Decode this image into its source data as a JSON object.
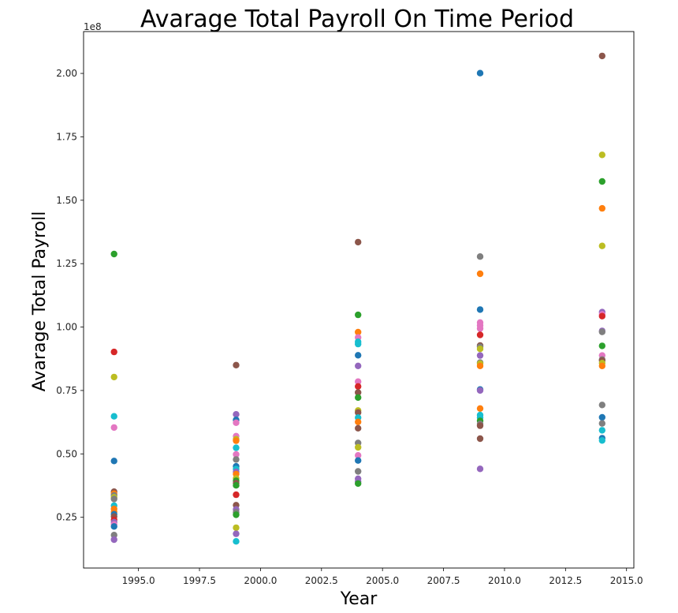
{
  "chart_data": {
    "type": "scatter",
    "title": "Avarage Total Payroll On Time Period",
    "xlabel": "Year",
    "ylabel": "Avarage Total Payroll",
    "y_offset_label": "1e8",
    "xlim": [
      1992.75,
      2015.3
    ],
    "ylim": [
      5000000,
      216500000
    ],
    "x_ticks": [
      1995.0,
      1997.5,
      2000.0,
      2002.5,
      2005.0,
      2007.5,
      2010.0,
      2012.5,
      2015.0
    ],
    "x_tick_labels": [
      "1995.0",
      "1997.5",
      "2000.0",
      "2002.5",
      "2005.0",
      "2007.5",
      "2010.0",
      "2012.5",
      "2015.0"
    ],
    "y_ticks": [
      25000000,
      50000000,
      75000000,
      100000000,
      125000000,
      150000000,
      175000000,
      200000000
    ],
    "y_tick_labels": [
      "0.25",
      "0.50",
      "0.75",
      "1.00",
      "1.25",
      "1.50",
      "1.75",
      "2.00"
    ],
    "grid": false,
    "legend": "none",
    "colors": [
      "#1f77b4",
      "#ff7f0e",
      "#2ca02c",
      "#d62728",
      "#9467bd",
      "#8c564b",
      "#e377c2",
      "#7f7f7f",
      "#bcbd22",
      "#17becf"
    ],
    "points": [
      {
        "x": 1994,
        "y": 128800000,
        "color": "#2ca02c"
      },
      {
        "x": 1994,
        "y": 90200000,
        "color": "#d62728"
      },
      {
        "x": 1994,
        "y": 80300000,
        "color": "#bcbd22"
      },
      {
        "x": 1994,
        "y": 64800000,
        "color": "#17becf"
      },
      {
        "x": 1994,
        "y": 60400000,
        "color": "#e377c2"
      },
      {
        "x": 1994,
        "y": 47200000,
        "color": "#1f77b4"
      },
      {
        "x": 1994,
        "y": 35100000,
        "color": "#8c564b"
      },
      {
        "x": 1994,
        "y": 34300000,
        "color": "#ff7f0e"
      },
      {
        "x": 1994,
        "y": 33600000,
        "color": "#7f7f7f"
      },
      {
        "x": 1994,
        "y": 32900000,
        "color": "#bcbd22"
      },
      {
        "x": 1994,
        "y": 32200000,
        "color": "#7f7f7f"
      },
      {
        "x": 1994,
        "y": 29600000,
        "color": "#17becf"
      },
      {
        "x": 1994,
        "y": 28300000,
        "color": "#ff7f0e"
      },
      {
        "x": 1994,
        "y": 27100000,
        "color": "#ff7f0e"
      },
      {
        "x": 1994,
        "y": 26200000,
        "color": "#1f77b4"
      },
      {
        "x": 1994,
        "y": 25300000,
        "color": "#8c564b"
      },
      {
        "x": 1994,
        "y": 24000000,
        "color": "#d62728"
      },
      {
        "x": 1994,
        "y": 23100000,
        "color": "#9467bd"
      },
      {
        "x": 1994,
        "y": 22200000,
        "color": "#e377c2"
      },
      {
        "x": 1994,
        "y": 21400000,
        "color": "#1f77b4"
      },
      {
        "x": 1994,
        "y": 18000000,
        "color": "#7f7f7f"
      },
      {
        "x": 1994,
        "y": 16200000,
        "color": "#9467bd"
      },
      {
        "x": 1999,
        "y": 85000000,
        "color": "#8c564b"
      },
      {
        "x": 1999,
        "y": 65600000,
        "color": "#9467bd"
      },
      {
        "x": 1999,
        "y": 63400000,
        "color": "#1f77b4"
      },
      {
        "x": 1999,
        "y": 62300000,
        "color": "#e377c2"
      },
      {
        "x": 1999,
        "y": 57000000,
        "color": "#e377c2"
      },
      {
        "x": 1999,
        "y": 55800000,
        "color": "#bcbd22"
      },
      {
        "x": 1999,
        "y": 55200000,
        "color": "#ff7f0e"
      },
      {
        "x": 1999,
        "y": 52400000,
        "color": "#17becf"
      },
      {
        "x": 1999,
        "y": 49800000,
        "color": "#e377c2"
      },
      {
        "x": 1999,
        "y": 47800000,
        "color": "#7f7f7f"
      },
      {
        "x": 1999,
        "y": 45100000,
        "color": "#1f77b4"
      },
      {
        "x": 1999,
        "y": 44000000,
        "color": "#17becf"
      },
      {
        "x": 1999,
        "y": 42900000,
        "color": "#9467bd"
      },
      {
        "x": 1999,
        "y": 42000000,
        "color": "#ff7f0e"
      },
      {
        "x": 1999,
        "y": 40300000,
        "color": "#bcbd22"
      },
      {
        "x": 1999,
        "y": 39400000,
        "color": "#2ca02c"
      },
      {
        "x": 1999,
        "y": 38500000,
        "color": "#8c564b"
      },
      {
        "x": 1999,
        "y": 37600000,
        "color": "#2ca02c"
      },
      {
        "x": 1999,
        "y": 33900000,
        "color": "#d62728"
      },
      {
        "x": 1999,
        "y": 29800000,
        "color": "#8c564b"
      },
      {
        "x": 1999,
        "y": 28100000,
        "color": "#9467bd"
      },
      {
        "x": 1999,
        "y": 27000000,
        "color": "#7f7f7f"
      },
      {
        "x": 1999,
        "y": 26000000,
        "color": "#2ca02c"
      },
      {
        "x": 1999,
        "y": 20900000,
        "color": "#bcbd22"
      },
      {
        "x": 1999,
        "y": 18500000,
        "color": "#9467bd"
      },
      {
        "x": 1999,
        "y": 15500000,
        "color": "#17becf"
      },
      {
        "x": 2004,
        "y": 133500000,
        "color": "#8c564b"
      },
      {
        "x": 2004,
        "y": 104800000,
        "color": "#2ca02c"
      },
      {
        "x": 2004,
        "y": 98000000,
        "color": "#ff7f0e"
      },
      {
        "x": 2004,
        "y": 95900000,
        "color": "#e377c2"
      },
      {
        "x": 2004,
        "y": 94200000,
        "color": "#17becf"
      },
      {
        "x": 2004,
        "y": 93300000,
        "color": "#17becf"
      },
      {
        "x": 2004,
        "y": 88900000,
        "color": "#1f77b4"
      },
      {
        "x": 2004,
        "y": 84700000,
        "color": "#9467bd"
      },
      {
        "x": 2004,
        "y": 78500000,
        "color": "#e377c2"
      },
      {
        "x": 2004,
        "y": 76600000,
        "color": "#d62728"
      },
      {
        "x": 2004,
        "y": 74200000,
        "color": "#8c564b"
      },
      {
        "x": 2004,
        "y": 72200000,
        "color": "#2ca02c"
      },
      {
        "x": 2004,
        "y": 67100000,
        "color": "#bcbd22"
      },
      {
        "x": 2004,
        "y": 66300000,
        "color": "#8c564b"
      },
      {
        "x": 2004,
        "y": 64300000,
        "color": "#17becf"
      },
      {
        "x": 2004,
        "y": 62600000,
        "color": "#ff7f0e"
      },
      {
        "x": 2004,
        "y": 60100000,
        "color": "#8c564b"
      },
      {
        "x": 2004,
        "y": 54300000,
        "color": "#7f7f7f"
      },
      {
        "x": 2004,
        "y": 52600000,
        "color": "#bcbd22"
      },
      {
        "x": 2004,
        "y": 49400000,
        "color": "#e377c2"
      },
      {
        "x": 2004,
        "y": 47400000,
        "color": "#1f77b4"
      },
      {
        "x": 2004,
        "y": 43100000,
        "color": "#7f7f7f"
      },
      {
        "x": 2004,
        "y": 40200000,
        "color": "#9467bd"
      },
      {
        "x": 2004,
        "y": 39100000,
        "color": "#9467bd"
      },
      {
        "x": 2004,
        "y": 38300000,
        "color": "#2ca02c"
      },
      {
        "x": 2009,
        "y": 200100000,
        "color": "#1f77b4"
      },
      {
        "x": 2009,
        "y": 127800000,
        "color": "#7f7f7f"
      },
      {
        "x": 2009,
        "y": 121000000,
        "color": "#ff7f0e"
      },
      {
        "x": 2009,
        "y": 106900000,
        "color": "#1f77b4"
      },
      {
        "x": 2009,
        "y": 101800000,
        "color": "#e377c2"
      },
      {
        "x": 2009,
        "y": 100600000,
        "color": "#e377c2"
      },
      {
        "x": 2009,
        "y": 99400000,
        "color": "#e377c2"
      },
      {
        "x": 2009,
        "y": 96900000,
        "color": "#d62728"
      },
      {
        "x": 2009,
        "y": 92700000,
        "color": "#8c564b"
      },
      {
        "x": 2009,
        "y": 92200000,
        "color": "#7f7f7f"
      },
      {
        "x": 2009,
        "y": 91400000,
        "color": "#bcbd22"
      },
      {
        "x": 2009,
        "y": 88800000,
        "color": "#9467bd"
      },
      {
        "x": 2009,
        "y": 86000000,
        "color": "#7f7f7f"
      },
      {
        "x": 2009,
        "y": 85600000,
        "color": "#bcbd22"
      },
      {
        "x": 2009,
        "y": 84700000,
        "color": "#ff7f0e"
      },
      {
        "x": 2009,
        "y": 75400000,
        "color": "#1f77b4"
      },
      {
        "x": 2009,
        "y": 75000000,
        "color": "#9467bd"
      },
      {
        "x": 2009,
        "y": 67900000,
        "color": "#ff7f0e"
      },
      {
        "x": 2009,
        "y": 65300000,
        "color": "#17becf"
      },
      {
        "x": 2009,
        "y": 64300000,
        "color": "#17becf"
      },
      {
        "x": 2009,
        "y": 63000000,
        "color": "#2ca02c"
      },
      {
        "x": 2009,
        "y": 61800000,
        "color": "#7f7f7f"
      },
      {
        "x": 2009,
        "y": 61100000,
        "color": "#8c564b"
      },
      {
        "x": 2009,
        "y": 56000000,
        "color": "#8c564b"
      },
      {
        "x": 2009,
        "y": 44100000,
        "color": "#9467bd"
      },
      {
        "x": 2014,
        "y": 206900000,
        "color": "#8c564b"
      },
      {
        "x": 2014,
        "y": 167900000,
        "color": "#bcbd22"
      },
      {
        "x": 2014,
        "y": 157400000,
        "color": "#2ca02c"
      },
      {
        "x": 2014,
        "y": 146800000,
        "color": "#ff7f0e"
      },
      {
        "x": 2014,
        "y": 132000000,
        "color": "#bcbd22"
      },
      {
        "x": 2014,
        "y": 105900000,
        "color": "#9467bd"
      },
      {
        "x": 2014,
        "y": 105000000,
        "color": "#e377c2"
      },
      {
        "x": 2014,
        "y": 104300000,
        "color": "#d62728"
      },
      {
        "x": 2014,
        "y": 98500000,
        "color": "#9467bd"
      },
      {
        "x": 2014,
        "y": 98100000,
        "color": "#7f7f7f"
      },
      {
        "x": 2014,
        "y": 92600000,
        "color": "#2ca02c"
      },
      {
        "x": 2014,
        "y": 88800000,
        "color": "#e377c2"
      },
      {
        "x": 2014,
        "y": 87200000,
        "color": "#7f7f7f"
      },
      {
        "x": 2014,
        "y": 86800000,
        "color": "#8c564b"
      },
      {
        "x": 2014,
        "y": 85800000,
        "color": "#bcbd22"
      },
      {
        "x": 2014,
        "y": 84700000,
        "color": "#ff7f0e"
      },
      {
        "x": 2014,
        "y": 69300000,
        "color": "#7f7f7f"
      },
      {
        "x": 2014,
        "y": 64400000,
        "color": "#1f77b4"
      },
      {
        "x": 2014,
        "y": 62000000,
        "color": "#7f7f7f"
      },
      {
        "x": 2014,
        "y": 59300000,
        "color": "#17becf"
      },
      {
        "x": 2014,
        "y": 56200000,
        "color": "#1f77b4"
      },
      {
        "x": 2014,
        "y": 55300000,
        "color": "#17becf"
      }
    ]
  }
}
